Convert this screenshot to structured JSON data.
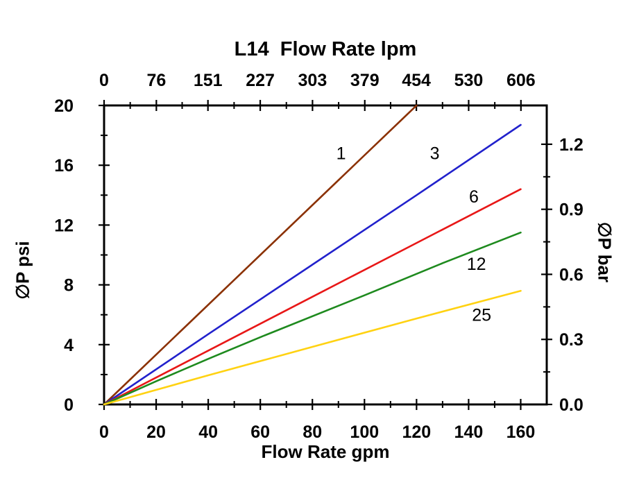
{
  "chart_data": {
    "type": "line",
    "title": "L14  Flow Rate lpm",
    "xlabel_bottom": "Flow Rate gpm",
    "xlabel_top": "L14  Flow Rate lpm",
    "ylabel_left": "∅P psi",
    "ylabel_right": "∅P bar",
    "x_bottom_unit": "gpm",
    "x_top_unit": "lpm",
    "lpm_per_gpm": 3.7854,
    "psi_per_bar": 14.5038,
    "xlim_gpm": [
      0,
      170
    ],
    "ylim_psi": [
      0,
      20
    ],
    "grid": false,
    "background_color": "#FFFFFF",
    "frame_color": "#000000",
    "x_ticks_gpm": [
      "0",
      "20",
      "40",
      "60",
      "80",
      "100",
      "120",
      "140",
      "160"
    ],
    "x_ticks_lpm": [
      "0",
      "76",
      "151",
      "227",
      "303",
      "379",
      "454",
      "530",
      "606"
    ],
    "y_ticks_psi": [
      "0",
      "4",
      "8",
      "12",
      "16",
      "20"
    ],
    "y_ticks_bar": [
      "0.0",
      "0.3",
      "0.6",
      "0.9",
      "1.2"
    ],
    "series": [
      {
        "name": "1",
        "color": "#8B3103",
        "points_gpm_psi": [
          [
            0,
            0
          ],
          [
            30,
            5.0
          ],
          [
            60,
            10.0
          ],
          [
            90,
            15.0
          ],
          [
            120,
            20.0
          ]
        ],
        "label": {
          "text": "1",
          "gpm": 91,
          "psi": 16.4
        }
      },
      {
        "name": "3",
        "color": "#2121CC",
        "points_gpm_psi": [
          [
            0,
            0
          ],
          [
            40,
            4.7
          ],
          [
            80,
            9.35
          ],
          [
            120,
            14.0
          ],
          [
            160,
            18.7
          ]
        ],
        "label": {
          "text": "3",
          "gpm": 127,
          "psi": 16.4
        }
      },
      {
        "name": "6",
        "color": "#E81717",
        "points_gpm_psi": [
          [
            0,
            0
          ],
          [
            40,
            3.6
          ],
          [
            80,
            7.2
          ],
          [
            120,
            10.8
          ],
          [
            160,
            14.4
          ]
        ],
        "label": {
          "text": "6",
          "gpm": 142,
          "psi": 13.5
        }
      },
      {
        "name": "12",
        "color": "#1E8A1E",
        "points_gpm_psi": [
          [
            0,
            0
          ],
          [
            20,
            1.55
          ],
          [
            40,
            3.05
          ],
          [
            60,
            4.5
          ],
          [
            65,
            4.85
          ],
          [
            100,
            7.3
          ],
          [
            130,
            9.45
          ],
          [
            160,
            11.5
          ]
        ],
        "label": {
          "text": "12",
          "gpm": 143,
          "psi": 9.0
        }
      },
      {
        "name": "25",
        "color": "#FFD212",
        "points_gpm_psi": [
          [
            0,
            0
          ],
          [
            40,
            1.95
          ],
          [
            80,
            3.85
          ],
          [
            120,
            5.75
          ],
          [
            160,
            7.6
          ]
        ],
        "label": {
          "text": "25",
          "gpm": 145,
          "psi": 5.6
        }
      }
    ]
  }
}
